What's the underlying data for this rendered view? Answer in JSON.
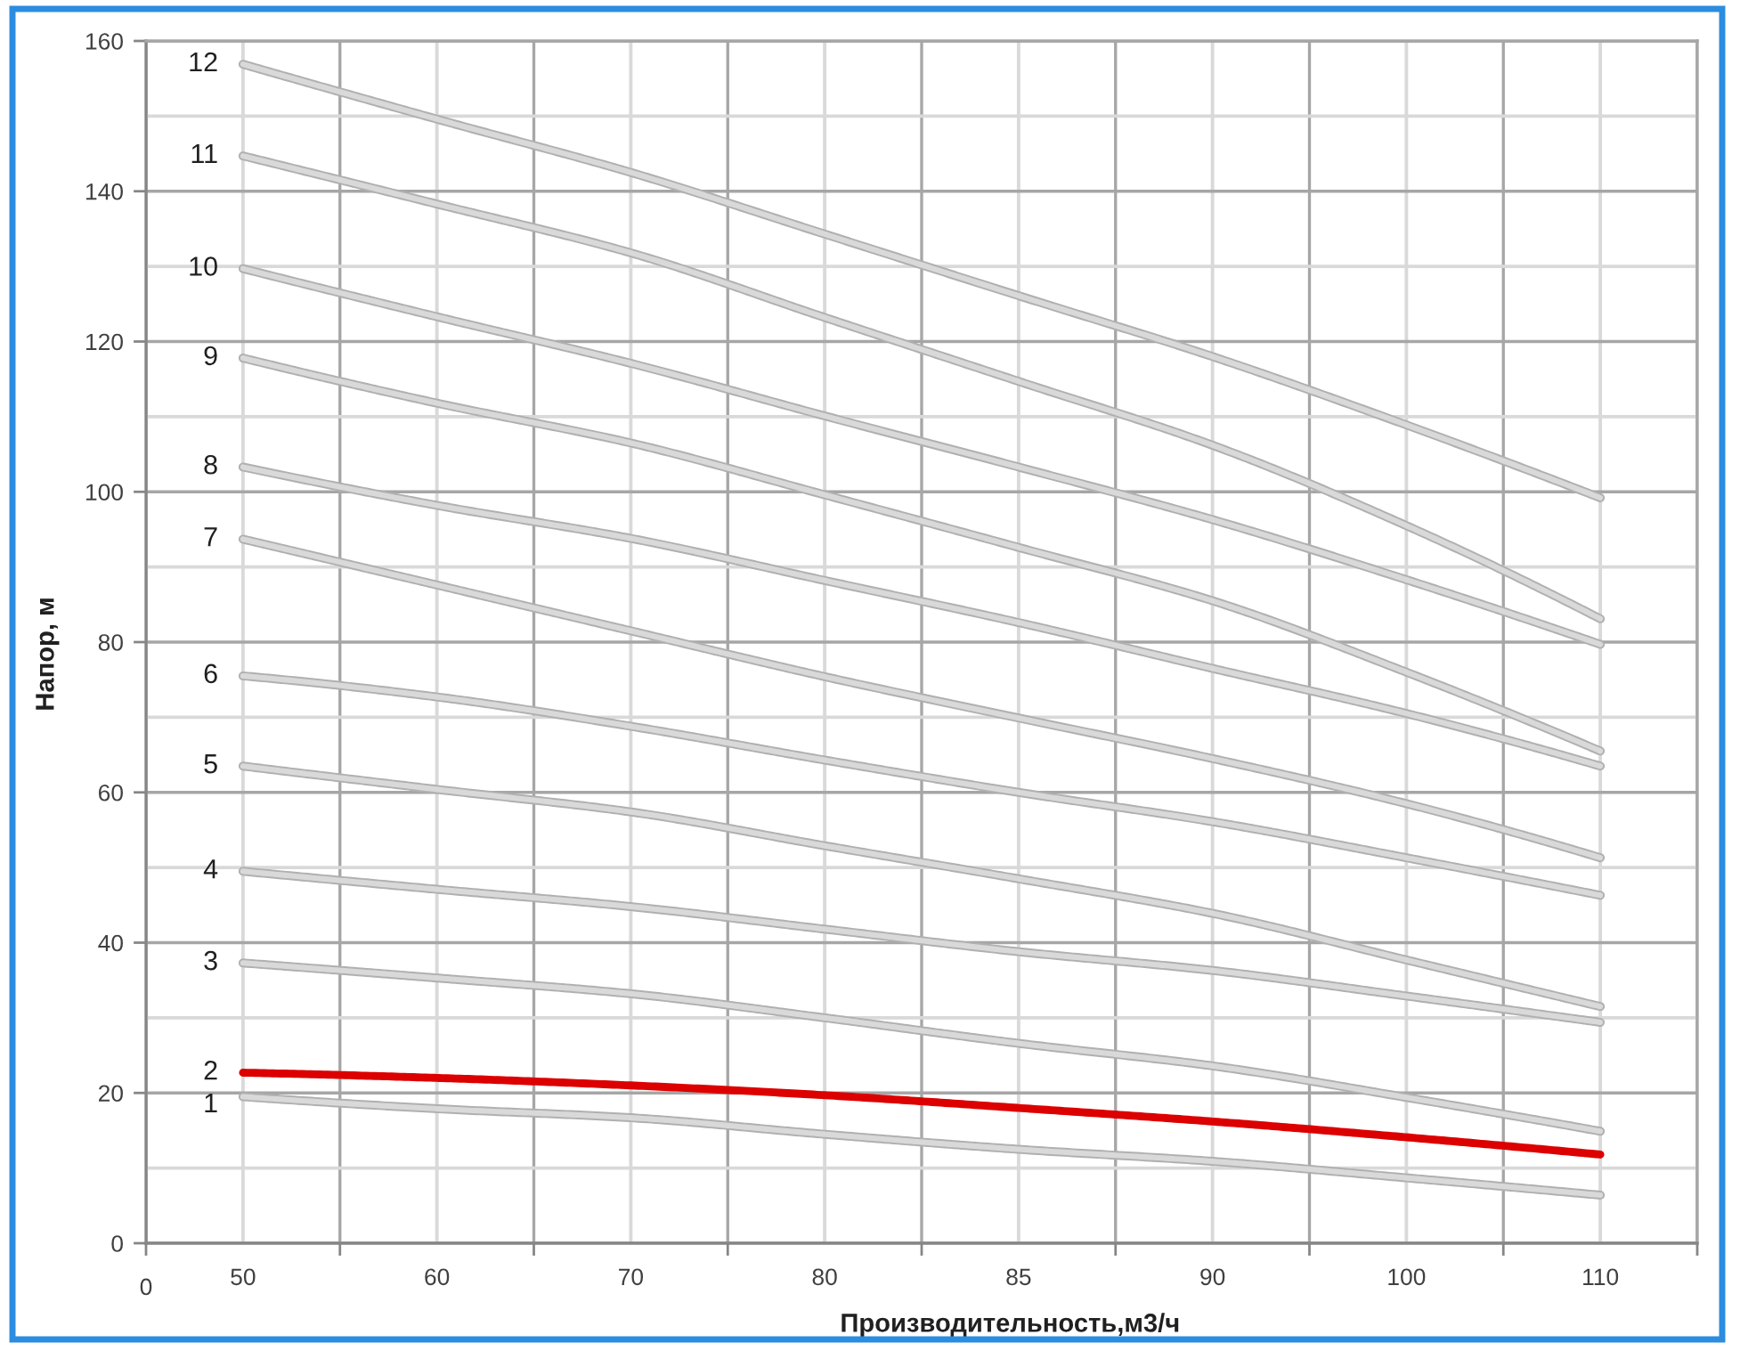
{
  "chart_data": {
    "type": "line",
    "xlabel": "Производительность,м3/ч",
    "ylabel": "Напор, м",
    "categories": [
      "50",
      "60",
      "70",
      "80",
      "85",
      "90",
      "100",
      "110"
    ],
    "series": [
      {
        "name": "1",
        "color": "#d9d9d9",
        "values": [
          19.5,
          17.9,
          16.7,
          14.5,
          12.5,
          10.9,
          8.7,
          6.4
        ]
      },
      {
        "name": "2",
        "color": "#dc0000",
        "values": [
          22.7,
          22.0,
          21.0,
          19.7,
          18.0,
          16.2,
          14.1,
          11.8
        ]
      },
      {
        "name": "3",
        "color": "#d9d9d9",
        "values": [
          37.3,
          35.3,
          33.2,
          30.0,
          26.6,
          23.6,
          19.4,
          14.9
        ]
      },
      {
        "name": "4",
        "color": "#d9d9d9",
        "values": [
          49.5,
          47.1,
          44.8,
          41.8,
          38.8,
          36.3,
          32.9,
          29.4
        ]
      },
      {
        "name": "5",
        "color": "#d9d9d9",
        "values": [
          63.5,
          60.4,
          57.4,
          52.9,
          48.5,
          43.9,
          37.7,
          31.5
        ]
      },
      {
        "name": "6",
        "color": "#d9d9d9",
        "values": [
          75.5,
          72.7,
          68.8,
          64.3,
          60.0,
          56.1,
          51.3,
          46.3
        ]
      },
      {
        "name": "7",
        "color": "#d9d9d9",
        "values": [
          93.7,
          87.6,
          81.5,
          75.4,
          69.9,
          64.5,
          58.5,
          51.3
        ]
      },
      {
        "name": "8",
        "color": "#d9d9d9",
        "values": [
          103.3,
          98.2,
          93.8,
          88.2,
          82.6,
          76.5,
          70.5,
          63.5
        ]
      },
      {
        "name": "9",
        "color": "#d9d9d9",
        "values": [
          117.8,
          111.8,
          106.5,
          99.6,
          92.6,
          85.5,
          76.0,
          65.5
        ]
      },
      {
        "name": "10",
        "color": "#d9d9d9",
        "values": [
          129.7,
          123.3,
          117.1,
          110.1,
          103.3,
          96.3,
          88.3,
          79.7
        ]
      },
      {
        "name": "11",
        "color": "#d9d9d9",
        "values": [
          144.7,
          138.3,
          131.8,
          123.2,
          114.7,
          106.2,
          95.5,
          83.1
        ]
      },
      {
        "name": "12",
        "color": "#d9d9d9",
        "values": [
          156.9,
          149.6,
          142.5,
          134.3,
          126.1,
          118.0,
          108.9,
          99.2
        ]
      }
    ],
    "ylim": [
      0,
      160
    ],
    "yticks": [
      0,
      {
        "value": 10,
        "label": null
      },
      20,
      {
        "value": 30,
        "label": null
      },
      40,
      {
        "value": 50,
        "label": null
      },
      60,
      {
        "value": 70,
        "label": null
      },
      80,
      {
        "value": 90,
        "label": null
      },
      100,
      {
        "value": 110,
        "label": null
      },
      120,
      {
        "value": 130,
        "label": null
      },
      140,
      {
        "value": 150,
        "label": null
      },
      160
    ],
    "grid": true,
    "annotations": [
      "0"
    ]
  }
}
